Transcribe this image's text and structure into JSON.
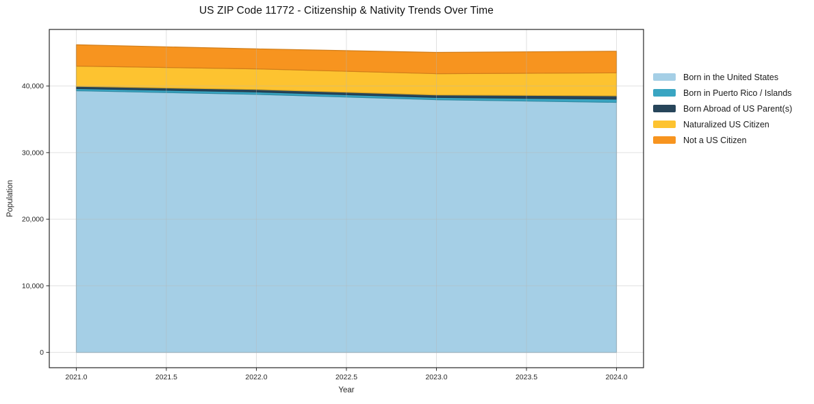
{
  "chart_data": {
    "type": "area",
    "stacked": true,
    "title": "US ZIP Code 11772 - Citizenship & Nativity Trends Over Time",
    "xlabel": "Year",
    "ylabel": "Population",
    "x": [
      2021,
      2022,
      2023,
      2024
    ],
    "series": [
      {
        "name": "Born in the United States",
        "color": "#a5cfe6",
        "values": [
          39300,
          38750,
          37950,
          37550
        ]
      },
      {
        "name": "Born in Puerto Rico / Islands",
        "color": "#39a5c2",
        "values": [
          320,
          360,
          340,
          480
        ]
      },
      {
        "name": "Born Abroad of US Parent(s)",
        "color": "#27455a",
        "values": [
          330,
          370,
          370,
          500
        ]
      },
      {
        "name": "Naturalized US Citizen",
        "color": "#fdc330",
        "values": [
          3050,
          3100,
          3200,
          3450
        ]
      },
      {
        "name": "Not a US Citizen",
        "color": "#f7941f",
        "values": [
          3200,
          3000,
          3200,
          3250
        ]
      }
    ],
    "xlim": [
      2020.85,
      2024.15
    ],
    "ylim": [
      -2300,
      48500
    ],
    "xticks": [
      2021.0,
      2021.5,
      2022.0,
      2022.5,
      2023.0,
      2023.5,
      2024.0
    ],
    "xtick_labels": [
      "2021.0",
      "2021.5",
      "2022.0",
      "2022.5",
      "2023.0",
      "2023.5",
      "2024.0"
    ],
    "yticks": [
      0,
      10000,
      20000,
      30000,
      40000
    ],
    "ytick_labels": [
      "0",
      "10,000",
      "20,000",
      "30,000",
      "40,000"
    ],
    "grid": true,
    "grid_color": "rgba(180,180,180,0.42)",
    "spine_color": "#262626",
    "legend_position": "right"
  }
}
